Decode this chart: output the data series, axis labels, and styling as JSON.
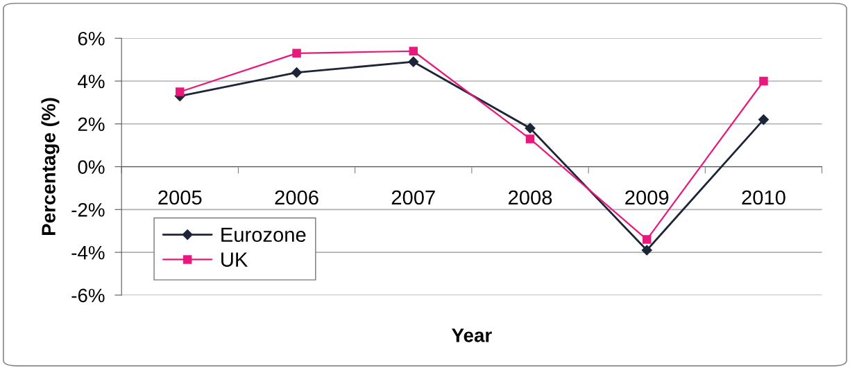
{
  "chart_data": {
    "type": "line",
    "xlabel": "Year",
    "ylabel": "Percentage (%)",
    "categories": [
      "2005",
      "2006",
      "2007",
      "2008",
      "2009",
      "2010"
    ],
    "series": [
      {
        "name": "Eurozone",
        "color": "#1c2638",
        "marker": "diamond",
        "values": [
          3.3,
          4.4,
          4.9,
          1.8,
          -3.9,
          2.2
        ]
      },
      {
        "name": "UK",
        "color": "#e8187c",
        "marker": "square",
        "values": [
          3.5,
          5.3,
          5.4,
          1.3,
          -3.4,
          4.0
        ]
      }
    ],
    "ylim": [
      -6,
      6
    ],
    "yticks": [
      {
        "value": -6,
        "label": "-6%"
      },
      {
        "value": -4,
        "label": "-4%"
      },
      {
        "value": -2,
        "label": "-2%"
      },
      {
        "value": 0,
        "label": "0%"
      },
      {
        "value": 2,
        "label": "2%"
      },
      {
        "value": 4,
        "label": "4%"
      },
      {
        "value": 6,
        "label": "6%"
      }
    ],
    "grid": "y",
    "legend": "bottom left",
    "line_style": "solid"
  }
}
